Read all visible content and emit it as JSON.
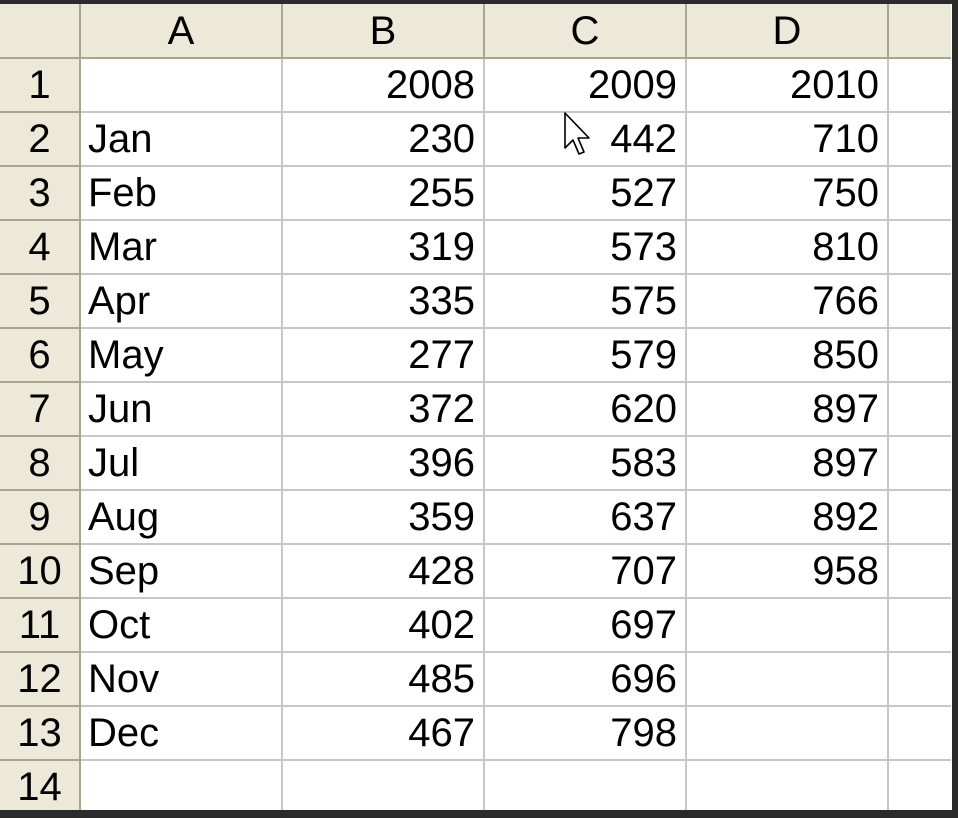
{
  "columns": [
    "",
    "A",
    "B",
    "C",
    "D",
    ""
  ],
  "rows": [
    {
      "num": "1",
      "a": "",
      "b": "2008",
      "c": "2009",
      "d": "2010"
    },
    {
      "num": "2",
      "a": "Jan",
      "b": "230",
      "c": "442",
      "d": "710"
    },
    {
      "num": "3",
      "a": "Feb",
      "b": "255",
      "c": "527",
      "d": "750"
    },
    {
      "num": "4",
      "a": "Mar",
      "b": "319",
      "c": "573",
      "d": "810"
    },
    {
      "num": "5",
      "a": "Apr",
      "b": "335",
      "c": "575",
      "d": "766"
    },
    {
      "num": "6",
      "a": "May",
      "b": "277",
      "c": "579",
      "d": "850"
    },
    {
      "num": "7",
      "a": "Jun",
      "b": "372",
      "c": "620",
      "d": "897"
    },
    {
      "num": "8",
      "a": "Jul",
      "b": "396",
      "c": "583",
      "d": "897"
    },
    {
      "num": "9",
      "a": "Aug",
      "b": "359",
      "c": "637",
      "d": "892"
    },
    {
      "num": "10",
      "a": "Sep",
      "b": "428",
      "c": "707",
      "d": "958"
    },
    {
      "num": "11",
      "a": "Oct",
      "b": "402",
      "c": "697",
      "d": ""
    },
    {
      "num": "12",
      "a": "Nov",
      "b": "485",
      "c": "696",
      "d": ""
    },
    {
      "num": "13",
      "a": "Dec",
      "b": "467",
      "c": "798",
      "d": ""
    },
    {
      "num": "14",
      "a": "",
      "b": "",
      "c": "",
      "d": ""
    }
  ],
  "colors": {
    "header_bg": "#ece9d8",
    "grid_line": "#c7c7c7",
    "header_line": "#a9a595",
    "frame": "#2b2b2b"
  },
  "icons": {
    "cursor": "arrow-pointer-icon"
  }
}
